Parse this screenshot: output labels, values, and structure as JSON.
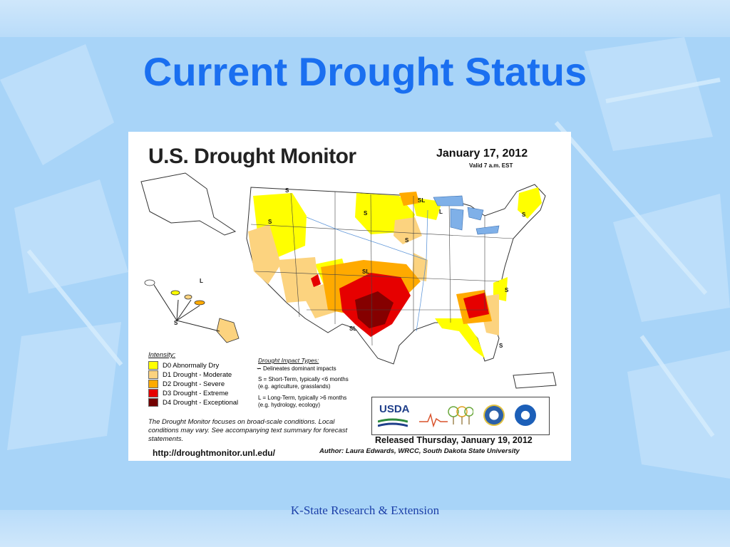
{
  "slide": {
    "title": "Current Drought Status",
    "footer": "K-State Research & Extension"
  },
  "map": {
    "header": "U.S. Drought Monitor",
    "date": "January 17, 2012",
    "valid": "Valid 7 a.m. EST",
    "legend": {
      "heading": "Intensity:",
      "items": [
        {
          "label": "D0 Abnormally Dry",
          "color": "#ffff00"
        },
        {
          "label": "D1 Drought - Moderate",
          "color": "#fcd37f"
        },
        {
          "label": "D2 Drought - Severe",
          "color": "#ffaa00"
        },
        {
          "label": "D3 Drought - Extreme",
          "color": "#e60000"
        },
        {
          "label": "D4 Drought - Exceptional",
          "color": "#730000"
        }
      ]
    },
    "impact": {
      "heading": "Drought Impact Types:",
      "delineates": "Delineates dominant impacts",
      "short_term": "S = Short-Term, typically <6 months",
      "short_term_eg": "(e.g. agriculture, grasslands)",
      "long_term": "L = Long-Term, typically >6 months",
      "long_term_eg": "(e.g. hydrology, ecology)"
    },
    "note": "The Drought Monitor focuses on broad-scale conditions. Local conditions may vary. See accompanying text summary for forecast statements.",
    "url": "http://droughtmonitor.unl.edu/",
    "released": "Released Thursday, January 19, 2012",
    "author": "Author: Laura Edwards, WRCC, South Dakota State University",
    "logos": {
      "usda": "USDA"
    },
    "labels": {
      "s": "S",
      "l": "L",
      "sl": "SL"
    }
  }
}
